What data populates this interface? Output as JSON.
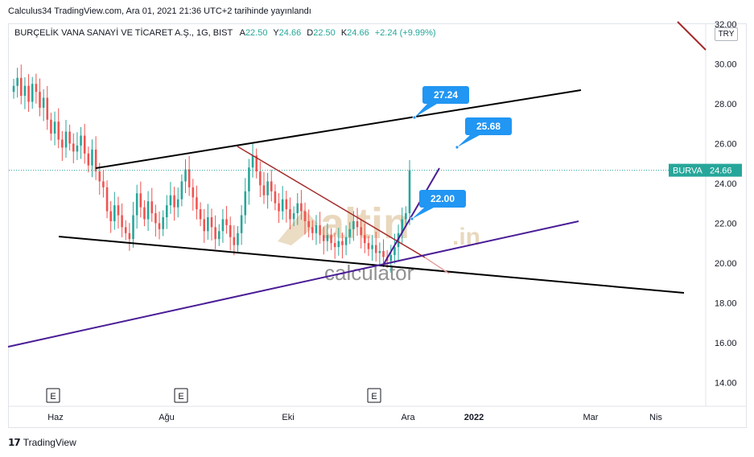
{
  "published": "Calculus34 TradingView.com, Ara 01, 2021 21:36 UTC+2 tarihinde yayınlandı",
  "legend": {
    "symbol": "BURÇELİK VANA SANAYİ VE TİCARET A.Ş., 1G, BIST",
    "open_label": "A",
    "open": "22.50",
    "high_label": "Y",
    "high": "24.66",
    "low_label": "D",
    "low": "22.50",
    "close_label": "K",
    "close": "24.66",
    "change": "+2.24 (+9.99%)"
  },
  "currency": "TRY",
  "footer": {
    "brand": "TradingView"
  },
  "watermark": {
    "word1": "altin",
    "word2": ".in",
    "word3": "calculator"
  },
  "colors": {
    "up": "#26a69a",
    "down": "#ef5350",
    "trend_black": "#000000",
    "trend_red": "#a52a2a",
    "trend_purple": "#4a1d96",
    "callout": "#2196f3",
    "watermark": "#d8b98a"
  },
  "chart_data": {
    "type": "candlestick",
    "symbol_tag": "BURVA",
    "last_price": "24.66",
    "y_ticks": [
      "14.00",
      "16.00",
      "18.00",
      "20.00",
      "22.00",
      "24.00",
      "26.00",
      "28.00",
      "30.00",
      "32.00"
    ],
    "ylim": [
      12.8,
      32.0
    ],
    "x_labels": [
      "Haz",
      "Ağu",
      "Eki",
      "Ara",
      "2022",
      "Mar",
      "Nis"
    ],
    "earnings_markers": [
      "E",
      "E",
      "E"
    ],
    "callouts": [
      "27.24",
      "25.68",
      "22.00"
    ],
    "closes": [
      28.9,
      29.3,
      28.4,
      28.9,
      28.1,
      29.0,
      28.6,
      27.8,
      28.3,
      27.2,
      26.5,
      27.1,
      26.2,
      25.8,
      26.6,
      26.0,
      25.6,
      25.9,
      26.4,
      25.5,
      24.9,
      25.7,
      24.6,
      24.1,
      23.8,
      22.6,
      22.1,
      22.9,
      22.4,
      21.8,
      21.5,
      21.2,
      22.4,
      23.5,
      22.8,
      22.2,
      23.1,
      22.5,
      22.0,
      21.7,
      22.3,
      22.9,
      23.4,
      22.8,
      23.2,
      24.1,
      24.7,
      23.8,
      23.3,
      22.7,
      22.2,
      21.6,
      22.3,
      21.8,
      21.2,
      21.6,
      22.2,
      21.9,
      21.3,
      20.9,
      21.5,
      22.4,
      23.6,
      24.8,
      25.4,
      24.6,
      23.9,
      23.4,
      24.1,
      23.6,
      23.0,
      22.6,
      23.2,
      22.7,
      22.2,
      22.5,
      23.0,
      22.6,
      22.1,
      21.8,
      21.5,
      21.9,
      21.4,
      21.1,
      21.4,
      21.0,
      20.8,
      21.1,
      20.9,
      21.3,
      21.7,
      22.1,
      21.8,
      21.4,
      21.0,
      20.7,
      20.9,
      20.5,
      20.6,
      20.3,
      20.1,
      20.4,
      20.8,
      21.5,
      22.2,
      22.5,
      24.66
    ]
  }
}
